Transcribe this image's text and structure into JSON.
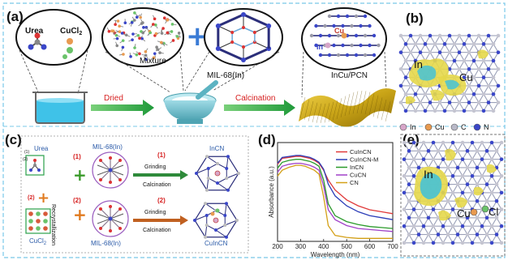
{
  "panels": {
    "a": "(a)",
    "b": "(b)",
    "c": "(c)",
    "d": "(d)",
    "e": "(e)"
  },
  "panel_a": {
    "urea": "Urea",
    "cucl2": "CuCl",
    "cucl2_sub": "2",
    "mixture": "Mixture",
    "mil": "MIL-68(In)",
    "incu_pcn": "InCu/PCN",
    "cu_atom": "Cu",
    "in_atom": "In",
    "dried": "Dried",
    "calcination": "Calcination"
  },
  "panel_b": {
    "in": "In",
    "cu": "Cu",
    "legend": [
      "In",
      "Cu",
      "C",
      "N"
    ],
    "colors": {
      "in": "#d7a6c9",
      "cu": "#e89a50",
      "c": "#b9b9c8",
      "n": "#3a46c8"
    }
  },
  "panel_c": {
    "urea": "Urea",
    "mil_top": "MIL-68(In)",
    "mil_bottom": "MIL-68(In)",
    "step1": "(1)",
    "step2": "(2)",
    "step1_arrow": "(1)",
    "step2_arrow": "(2)",
    "grinding_top": "Grinding",
    "calcination_top": "Calcination",
    "grinding_bottom": "Grinding",
    "calcination_bottom": "Calcination",
    "incn": "InCN",
    "cuincn": "CuInCN",
    "cucl2": "CuCl",
    "cucl2_sub": "2",
    "recrystallization": "Recrystallization",
    "small1": "(1)",
    "small2": "(2)"
  },
  "panel_e": {
    "in": "In",
    "cu": "Cu",
    "cl": "Cl"
  },
  "chart_data": {
    "type": "line",
    "xlabel": "Wavelength (nm)",
    "ylabel": "Absorbance (a.u.)",
    "xlim": [
      200,
      700
    ],
    "xticks": [
      200,
      300,
      400,
      500,
      600,
      700
    ],
    "ylim": [
      0,
      1
    ],
    "legend_position": "top-right",
    "series": [
      {
        "name": "CuInCN",
        "color": "#e03a3a",
        "x": [
          200,
          220,
          250,
          280,
          300,
          320,
          340,
          360,
          380,
          400,
          420,
          450,
          500,
          550,
          600,
          650,
          700
        ],
        "y": [
          0.78,
          0.84,
          0.85,
          0.86,
          0.86,
          0.85,
          0.84,
          0.82,
          0.79,
          0.72,
          0.62,
          0.52,
          0.42,
          0.36,
          0.32,
          0.3,
          0.28
        ]
      },
      {
        "name": "CuInCN-M",
        "color": "#2c3db8",
        "x": [
          200,
          220,
          250,
          280,
          300,
          320,
          340,
          360,
          380,
          400,
          420,
          450,
          500,
          550,
          600,
          650,
          700
        ],
        "y": [
          0.79,
          0.85,
          0.86,
          0.87,
          0.87,
          0.86,
          0.85,
          0.83,
          0.8,
          0.73,
          0.58,
          0.46,
          0.36,
          0.3,
          0.26,
          0.24,
          0.22
        ]
      },
      {
        "name": "InCN",
        "color": "#2a9a2a",
        "x": [
          200,
          220,
          250,
          280,
          300,
          320,
          340,
          360,
          380,
          400,
          420,
          450,
          500,
          550,
          600,
          650,
          700
        ],
        "y": [
          0.74,
          0.8,
          0.82,
          0.83,
          0.83,
          0.82,
          0.81,
          0.79,
          0.76,
          0.62,
          0.38,
          0.26,
          0.2,
          0.17,
          0.15,
          0.14,
          0.13
        ]
      },
      {
        "name": "CuCN",
        "color": "#a040c8",
        "x": [
          200,
          220,
          250,
          280,
          300,
          320,
          340,
          360,
          380,
          400,
          420,
          450,
          500,
          550,
          600,
          650,
          700
        ],
        "y": [
          0.7,
          0.76,
          0.78,
          0.79,
          0.79,
          0.78,
          0.77,
          0.75,
          0.72,
          0.56,
          0.32,
          0.22,
          0.16,
          0.13,
          0.12,
          0.11,
          0.1
        ]
      },
      {
        "name": "CN",
        "color": "#d4a017",
        "x": [
          200,
          220,
          250,
          280,
          300,
          320,
          340,
          360,
          380,
          400,
          420,
          450,
          500,
          550,
          600,
          650,
          700
        ],
        "y": [
          0.66,
          0.72,
          0.75,
          0.77,
          0.77,
          0.76,
          0.74,
          0.72,
          0.68,
          0.45,
          0.16,
          0.06,
          0.04,
          0.03,
          0.03,
          0.03,
          0.03
        ]
      }
    ]
  }
}
